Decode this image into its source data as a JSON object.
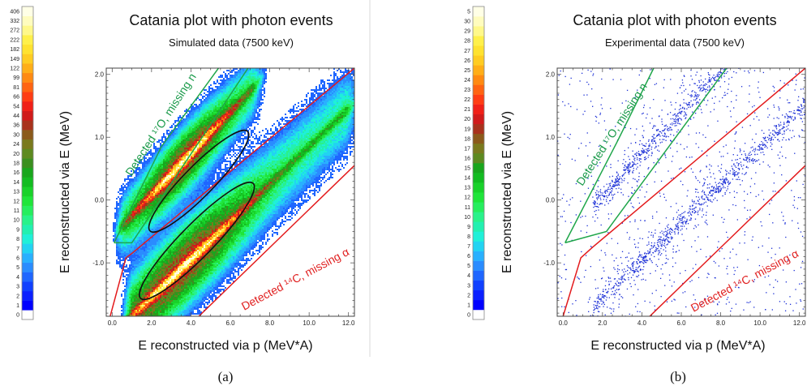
{
  "panels": [
    {
      "id": "a",
      "title": "Catania plot with photon events",
      "subtitle": "Simulated data (7500 keV)",
      "caption": "(a)",
      "green_label": "Detected ¹⁷O, missing n",
      "red_label": "Detected ¹⁴C, missing α",
      "colorbar_labels": [
        "0",
        "1",
        "2",
        "3",
        "4",
        "5",
        "6",
        "7",
        "8",
        "9",
        "10",
        "11",
        "12",
        "13",
        "14",
        "16",
        "18",
        "20",
        "24",
        "30",
        "36",
        "44",
        "54",
        "66",
        "81",
        "99",
        "122",
        "149",
        "182",
        "222",
        "272",
        "332",
        "406"
      ]
    },
    {
      "id": "b",
      "title": "Catania plot with photon events",
      "subtitle": "Experimental data (7500 keV)",
      "caption": "(b)",
      "green_label": "Detected ¹⁷O, missing n",
      "red_label": "Detected ¹⁴C, missing α",
      "colorbar_labels": [
        "0",
        "1",
        "2",
        "3",
        "4",
        "5",
        "6",
        "7",
        "8",
        "9",
        "10",
        "11",
        "12",
        "13",
        "14",
        "15",
        "16",
        "17",
        "18",
        "19",
        "20",
        "21",
        "22",
        "23",
        "24",
        "25",
        "26",
        "27",
        "28",
        "29",
        "30",
        "5"
      ]
    }
  ],
  "colors": {
    "green_cut": "#1fa64a",
    "red_cut": "#e31a1c",
    "ellipse": "#111111",
    "scatter_point": "#1b2fd6"
  },
  "chart_data": [
    {
      "type": "heatmap",
      "title": "Catania plot with photon events",
      "subtitle": "Simulated data (7500 keV)",
      "xlabel": "E reconstructed via p (MeV*A)",
      "ylabel": "E reconstructed via E (MeV)",
      "xlim": [
        -0.3,
        12.3
      ],
      "ylim": [
        -1.85,
        2.1
      ],
      "x_ticks": [
        "0.0",
        "2.0",
        "4.0",
        "6.0",
        "8.0",
        "10.0",
        "12.0"
      ],
      "y_ticks": [
        "-1.0",
        "0.0",
        "1.0",
        "2.0"
      ],
      "bands": [
        {
          "name": "Detected ¹⁷O, missing n",
          "slope": 0.33,
          "intercept": -0.58,
          "x_range": [
            0.4,
            7.5
          ]
        },
        {
          "name": "Detected ¹⁴C, missing α",
          "slope": 0.3,
          "intercept": -2.15,
          "x_range": [
            0.8,
            12.3
          ]
        }
      ],
      "cuts": {
        "green": [
          [
            0.1,
            -0.68
          ],
          [
            1.0,
            -0.68
          ],
          [
            6.9,
            2.1
          ]
        ],
        "green_upper": [
          [
            0.1,
            -0.68
          ],
          [
            2.5,
            0.85
          ],
          [
            5.4,
            2.1
          ]
        ],
        "red": [
          [
            -0.1,
            -1.85
          ],
          [
            0.7,
            -0.92
          ],
          [
            1.0,
            -0.85
          ],
          [
            12.3,
            2.1
          ]
        ],
        "red_lower": [
          [
            4.4,
            -1.85
          ],
          [
            12.3,
            0.55
          ]
        ]
      },
      "ellipses": [
        {
          "cx": 4.4,
          "cy": 0.3,
          "length": 5.2,
          "width": 0.24
        },
        {
          "cx": 4.3,
          "cy": -0.65,
          "length": 6.0,
          "width": 0.26
        }
      ],
      "colorbar": [
        0,
        1,
        2,
        3,
        4,
        5,
        6,
        7,
        8,
        9,
        10,
        11,
        12,
        13,
        14,
        16,
        18,
        20,
        24,
        30,
        36,
        44,
        54,
        66,
        81,
        99,
        122,
        149,
        182,
        222,
        272,
        332,
        406
      ]
    },
    {
      "type": "scatter",
      "title": "Catania plot with photon events",
      "subtitle": "Experimental data (7500 keV)",
      "xlabel": "E reconstructed via p (MeV*A)",
      "ylabel": "E reconstructed via E (MeV)",
      "xlim": [
        -0.3,
        12.3
      ],
      "ylim": [
        -1.85,
        2.1
      ],
      "x_ticks": [
        "0.0",
        "2.0",
        "4.0",
        "6.0",
        "8.0",
        "10.0",
        "12.0"
      ],
      "y_ticks": [
        "-1.0",
        "0.0",
        "1.0",
        "2.0"
      ],
      "bands": [
        {
          "name": "Detected ¹⁷O, missing n",
          "slope": 0.33,
          "intercept": -0.58,
          "x_range": [
            1.5,
            9.0
          ]
        },
        {
          "name": "Detected ¹⁴C, missing α",
          "slope": 0.3,
          "intercept": -2.15,
          "x_range": [
            1.5,
            12.3
          ]
        }
      ],
      "cuts": {
        "green": [
          [
            0.1,
            -0.68
          ],
          [
            2.2,
            -0.5
          ],
          [
            8.3,
            2.1
          ]
        ],
        "green_upper": [
          [
            0.1,
            -0.68
          ],
          [
            2.7,
            0.9
          ],
          [
            4.6,
            2.1
          ]
        ],
        "red": [
          [
            0.0,
            -1.85
          ],
          [
            0.9,
            -0.92
          ],
          [
            1.5,
            -0.75
          ],
          [
            12.3,
            2.1
          ]
        ],
        "red_lower": [
          [
            4.4,
            -1.85
          ],
          [
            12.3,
            0.55
          ]
        ]
      },
      "colorbar": [
        0,
        1,
        2,
        3,
        4,
        5,
        6,
        7,
        8,
        9,
        10,
        11,
        12,
        13,
        14,
        15,
        16,
        17,
        18,
        19,
        20,
        21,
        22,
        23,
        24,
        25,
        26,
        27,
        28,
        29,
        30,
        5
      ]
    }
  ]
}
